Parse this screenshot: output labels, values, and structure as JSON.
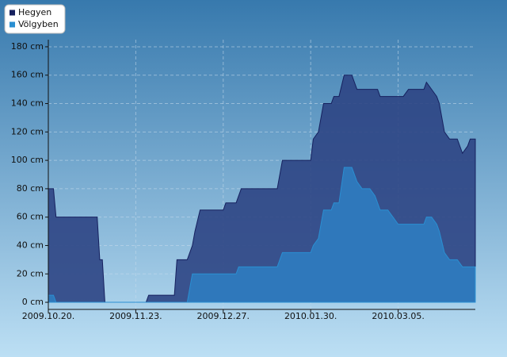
{
  "chart_data": {
    "type": "area",
    "x": [
      "2009.10.20.",
      "2009.10.22.",
      "2009.10.23.",
      "2009.11.08.",
      "2009.11.09.",
      "2009.11.10.",
      "2009.11.11.",
      "2009.11.27.",
      "2009.11.28.",
      "2009.12.08.",
      "2009.12.09.",
      "2009.12.13.",
      "2009.12.15.",
      "2009.12.16.",
      "2009.12.18.",
      "2009.12.27.",
      "2009.12.28.",
      "2010.01.01.",
      "2010.01.02.",
      "2010.01.03.",
      "2010.01.17.",
      "2010.01.19.",
      "2010.01.30.",
      "2010.01.31.",
      "2010.02.02.",
      "2010.02.04.",
      "2010.02.07.",
      "2010.02.08.",
      "2010.02.10.",
      "2010.02.12.",
      "2010.02.15.",
      "2010.02.17.",
      "2010.02.19.",
      "2010.02.22.",
      "2010.02.24.",
      "2010.02.25.",
      "2010.02.26.",
      "2010.03.01.",
      "2010.03.03.",
      "2010.03.05.",
      "2010.03.07.",
      "2010.03.09.",
      "2010.03.15.",
      "2010.03.16.",
      "2010.03.18.",
      "2010.03.20.",
      "2010.03.21.",
      "2010.03.23.",
      "2010.03.25.",
      "2010.03.28.",
      "2010.03.30.",
      "2010.04.01.",
      "2010.04.02.",
      "2010.04.04."
    ],
    "series": [
      {
        "name": "Hegyen",
        "color": "#16205e",
        "fill": "#2d4584",
        "values": [
          80,
          80,
          60,
          60,
          30,
          30,
          0,
          0,
          5,
          5,
          30,
          30,
          40,
          50,
          65,
          65,
          70,
          70,
          75,
          80,
          80,
          100,
          100,
          115,
          120,
          140,
          140,
          145,
          145,
          160,
          160,
          150,
          150,
          150,
          150,
          150,
          145,
          145,
          145,
          145,
          145,
          150,
          150,
          155,
          150,
          145,
          140,
          120,
          115,
          115,
          105,
          110,
          115,
          115
        ]
      },
      {
        "name": "Völgyben",
        "color": "#2a8fd2",
        "fill": "#2f7cc0",
        "values": [
          5,
          5,
          0,
          0,
          0,
          0,
          0,
          0,
          0,
          0,
          0,
          0,
          20,
          20,
          20,
          20,
          20,
          20,
          25,
          25,
          25,
          35,
          35,
          40,
          45,
          65,
          65,
          70,
          70,
          95,
          95,
          85,
          80,
          80,
          75,
          70,
          65,
          65,
          60,
          55,
          55,
          55,
          55,
          60,
          60,
          55,
          50,
          35,
          30,
          30,
          25,
          25,
          25,
          25
        ]
      }
    ],
    "xlim": [
      "2009.10.20.",
      "2010.04.04."
    ],
    "xticks": [
      "2009.10.20.",
      "2009.11.23.",
      "2009.12.27.",
      "2010.01.30.",
      "2010.03.05."
    ],
    "ylim": [
      -5,
      185
    ],
    "yticks": [
      {
        "value": 0,
        "label": "0 cm"
      },
      {
        "value": 20,
        "label": "20 cm"
      },
      {
        "value": 40,
        "label": "40 cm"
      },
      {
        "value": 60,
        "label": "60 cm"
      },
      {
        "value": 80,
        "label": "80 cm"
      },
      {
        "value": 100,
        "label": "100 cm"
      },
      {
        "value": 120,
        "label": "120 cm"
      },
      {
        "value": 140,
        "label": "140 cm"
      },
      {
        "value": 160,
        "label": "160 cm"
      },
      {
        "value": 180,
        "label": "180 cm"
      }
    ],
    "grid": true,
    "legend": "top-left"
  }
}
